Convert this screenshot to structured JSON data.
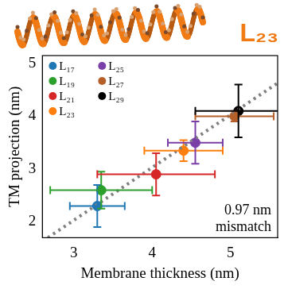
{
  "chart_data": {
    "type": "scatter",
    "title": "L₂₃",
    "x_label": "Membrane thickness (nm)",
    "y_label": "TM projection (nm)",
    "xlim": [
      2.6,
      5.6
    ],
    "xticks": [
      3,
      4,
      5
    ],
    "ylim": [
      1.7,
      5.15
    ],
    "yticks": [
      2,
      3,
      4,
      5
    ],
    "grid": false,
    "legend": "upper left",
    "series": [
      {
        "name": "L₁₇",
        "color": "#1f77b4",
        "x": [
          3.3
        ],
        "values": [
          2.3
        ],
        "x_error": [
          0.35
        ],
        "y_error": [
          0.4
        ]
      },
      {
        "name": "L₁₉",
        "color": "#2ca02c",
        "x": [
          3.35
        ],
        "values": [
          2.6
        ],
        "x_error": [
          0.65
        ],
        "y_error": [
          0.35
        ]
      },
      {
        "name": "L₂₁",
        "color": "#d62728",
        "x": [
          4.05
        ],
        "values": [
          2.9
        ],
        "x_error": [
          0.75
        ],
        "y_error": [
          0.4
        ]
      },
      {
        "name": "L₂₃",
        "color": "#ff7f0e",
        "x": [
          4.4
        ],
        "values": [
          3.35
        ],
        "x_error": [
          0.5
        ],
        "y_error": [
          0.2
        ]
      },
      {
        "name": "L₂₅",
        "color": "#7b3fa8",
        "x": [
          4.55
        ],
        "values": [
          3.5
        ],
        "x_error": [
          0.35
        ],
        "y_error": [
          0.4
        ]
      },
      {
        "name": "L₂₇",
        "color": "#b5602a",
        "x": [
          5.05
        ],
        "values": [
          4.0
        ],
        "x_error": [
          0.5
        ],
        "y_error": [
          0.1
        ]
      },
      {
        "name": "L₂₉",
        "color": "#000000",
        "x": [
          5.1
        ],
        "values": [
          4.1
        ],
        "x_error": [
          0.55
        ],
        "y_error": [
          0.5
        ]
      }
    ],
    "reference_line": {
      "x": [
        2.67,
        5.6
      ],
      "values": [
        1.7,
        4.63
      ],
      "color": "#808080",
      "line_style": "dotted"
    },
    "annotations": [
      {
        "text": [
          "0.97 nm",
          "mismatch"
        ]
      }
    ]
  }
}
